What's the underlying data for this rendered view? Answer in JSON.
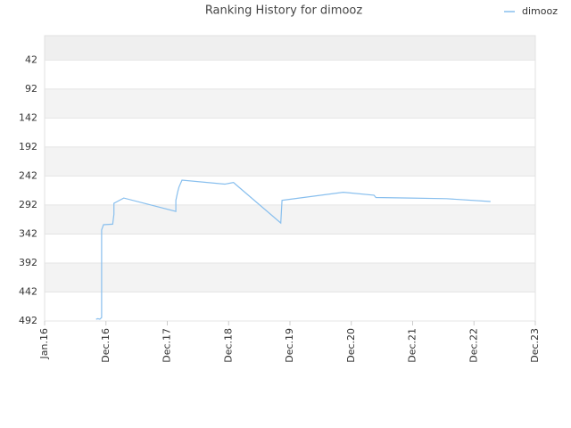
{
  "chart_data": {
    "type": "line",
    "title": "Ranking History for dimooz",
    "x": [
      2016.84,
      2016.87,
      2016.9,
      2016.93,
      2016.93,
      2016.96,
      2017.11,
      2017.13,
      2017.13,
      2017.29,
      2018.14,
      2018.14,
      2018.17,
      2018.19,
      2018.24,
      2018.94,
      2019.08,
      2019.11,
      2019.85,
      2019.87,
      2019.93,
      2020.87,
      2021.37,
      2021.4,
      2021.96,
      2022.55,
      2023.27
    ],
    "series": [
      {
        "name": "dimooz",
        "color": "#88bfee",
        "values": [
          489,
          488,
          489,
          486,
          335,
          326,
          325,
          308,
          289,
          280,
          303,
          284,
          269,
          261,
          249,
          256,
          253,
          256,
          323,
          284,
          283,
          270,
          275,
          279,
          280,
          281,
          286
        ]
      }
    ],
    "xlim": [
      2016,
      2024
    ],
    "xticks": [
      {
        "value": 2016,
        "label": "Jan.16"
      },
      {
        "value": 2017,
        "label": "Dec.16"
      },
      {
        "value": 2018,
        "label": "Dec.17"
      },
      {
        "value": 2019,
        "label": "Dec.18"
      },
      {
        "value": 2020,
        "label": "Dec.19"
      },
      {
        "value": 2021,
        "label": "Dec.20"
      },
      {
        "value": 2022,
        "label": "Dec.21"
      },
      {
        "value": 2023,
        "label": "Dec.22"
      },
      {
        "value": 2024,
        "label": "Dec.23"
      }
    ],
    "ylim": [
      492,
      0
    ],
    "yticks": [
      42,
      92,
      142,
      192,
      242,
      292,
      342,
      392,
      442,
      492
    ],
    "grid": true,
    "legend": "top-right"
  }
}
